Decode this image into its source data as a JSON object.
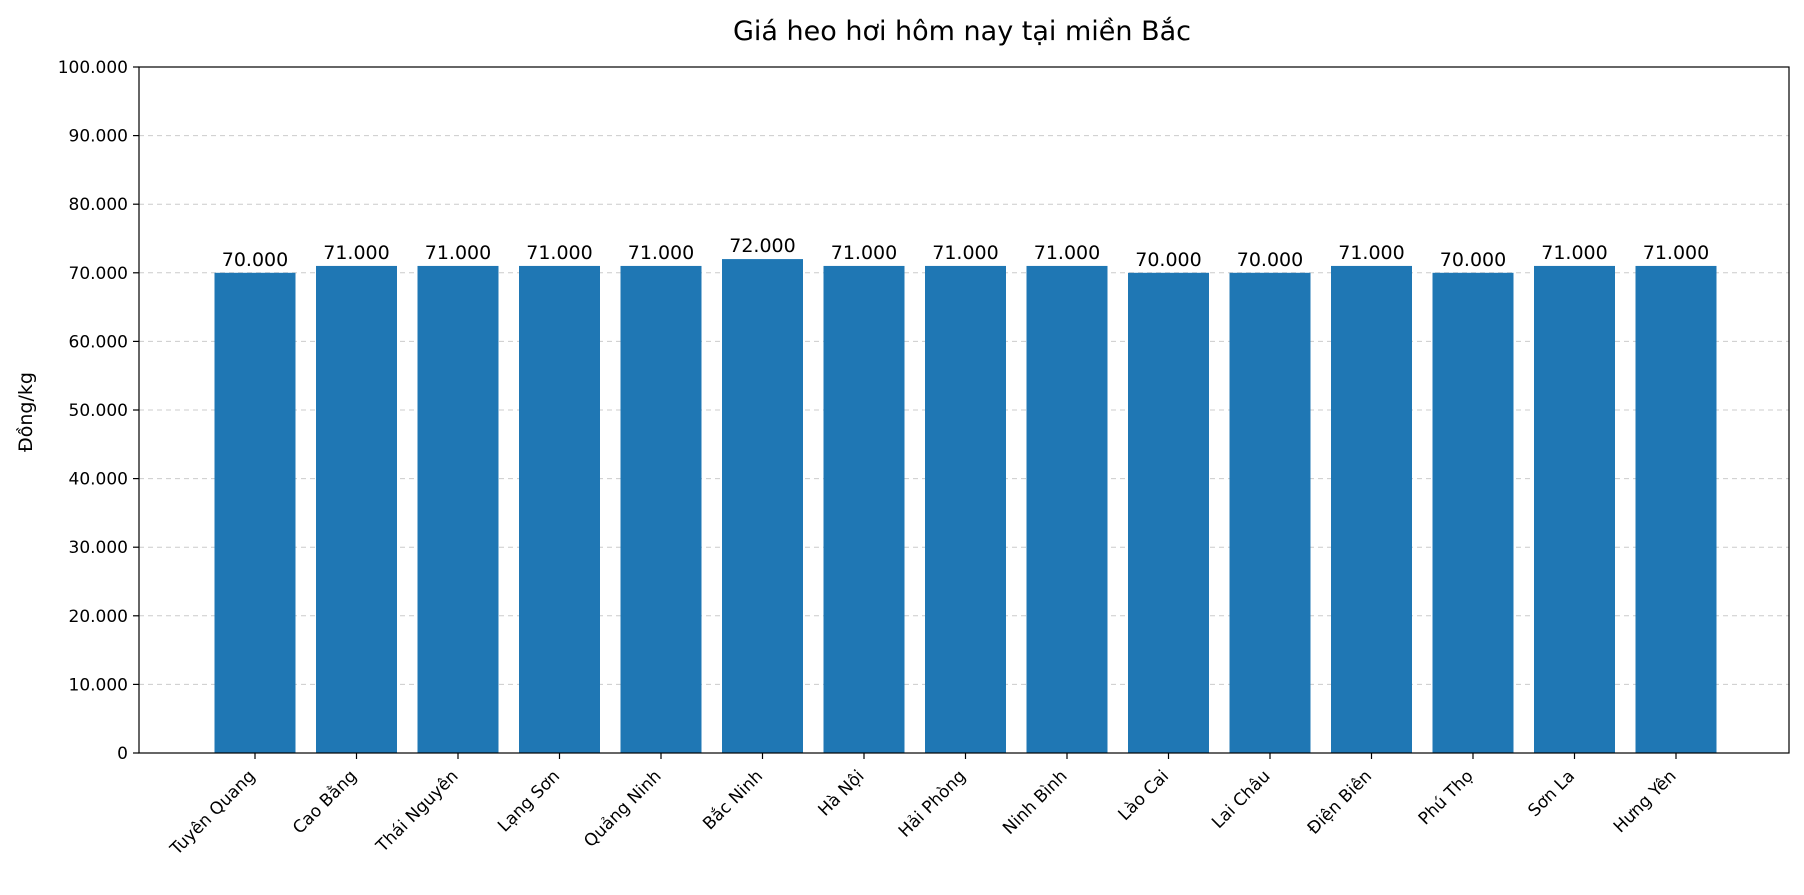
{
  "chart_data": {
    "type": "bar",
    "title": "Giá heo hơi hôm nay tại miền Bắc",
    "xlabel": "",
    "ylabel": "Đồng/kg",
    "categories": [
      "Tuyên Quang",
      "Cao Bằng",
      "Thái Nguyên",
      "Lạng Sơn",
      "Quảng Ninh",
      "Bắc Ninh",
      "Hà Nội",
      "Hải Phòng",
      "Ninh Bình",
      "Lào Cai",
      "Lai Châu",
      "Điện Biên",
      "Phú Thọ",
      "Sơn La",
      "Hưng Yên"
    ],
    "values": [
      70000,
      71000,
      71000,
      71000,
      71000,
      72000,
      71000,
      71000,
      71000,
      70000,
      70000,
      71000,
      70000,
      71000,
      71000
    ],
    "data_labels": [
      "70.000",
      "71.000",
      "71.000",
      "71.000",
      "71.000",
      "72.000",
      "71.000",
      "71.000",
      "71.000",
      "70.000",
      "70.000",
      "71.000",
      "70.000",
      "71.000",
      "71.000"
    ],
    "ylim": [
      0,
      100000
    ],
    "yticks": [
      0,
      10000,
      20000,
      30000,
      40000,
      50000,
      60000,
      70000,
      80000,
      90000,
      100000
    ],
    "ytick_labels": [
      "0",
      "10.000",
      "20.000",
      "30.000",
      "40.000",
      "50.000",
      "60.000",
      "70.000",
      "80.000",
      "90.000",
      "100.000"
    ],
    "grid": "y-dashed",
    "bar_color": "#1f77b4"
  }
}
